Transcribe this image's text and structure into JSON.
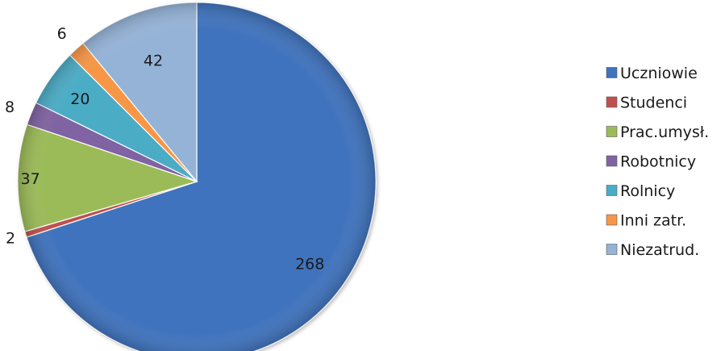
{
  "chart_data": {
    "type": "pie",
    "title": "",
    "start": "12 o'clock, clockwise",
    "legend_position": "right",
    "slices": [
      {
        "name": "Uczniowie",
        "value": 268,
        "color": "#3f73bd"
      },
      {
        "name": "Studenci",
        "value": 2,
        "color": "#c0504d"
      },
      {
        "name": "Prac.umysł.",
        "value": 37,
        "color": "#9bbb59"
      },
      {
        "name": "Robotnicy",
        "value": 8,
        "color": "#8064a2"
      },
      {
        "name": "Rolnicy",
        "value": 20,
        "color": "#4bacc6"
      },
      {
        "name": "Inni zatr.",
        "value": 6,
        "color": "#f79646"
      },
      {
        "name": "Niezatrud.",
        "value": 42,
        "color": "#95b3d7"
      }
    ]
  }
}
